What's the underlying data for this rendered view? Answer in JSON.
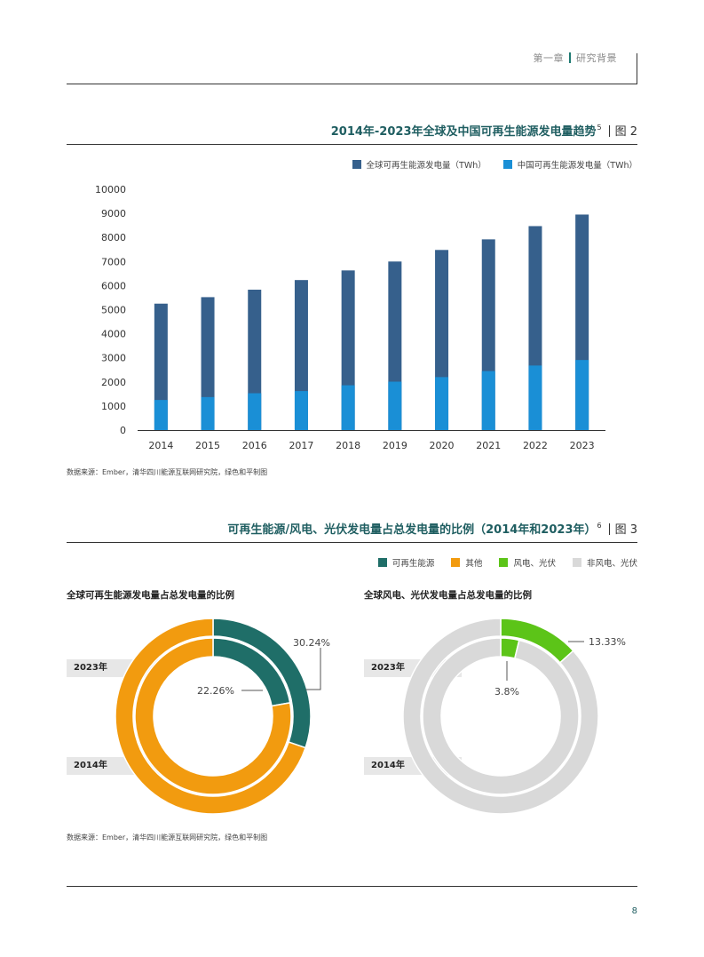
{
  "header": {
    "chapter": "第一章",
    "section": "研究背景"
  },
  "figure2": {
    "title": "2014年-2023年全球及中国可再生能源发电量趋势",
    "ref": "5",
    "fig_label": "图 2",
    "source": "数据来源：Ember，清华四川能源互联网研究院，绿色和平制图"
  },
  "figure3": {
    "title": "可再生能源/风电、光伏发电量占总发电量的比例（2014年和2023年）",
    "ref": "6",
    "fig_label": "图 3",
    "legend": [
      "可再生能源",
      "其他",
      "风电、光伏",
      "非风电、光伏"
    ],
    "left_title": "全球可再生能源发电量占总发电量的比例",
    "right_title": "全球风电、光伏发电量占总发电量的比例",
    "year_outer": "2023年",
    "year_inner": "2014年",
    "source": "数据来源：Ember，清华四川能源互联网研究院，绿色和平制图"
  },
  "colors": {
    "global_bar": "#36608c",
    "china_bar": "#1a8fd6",
    "renewable": "#1f6e68",
    "other": "#f29b0f",
    "wind_solar": "#5cc418",
    "non_wind_solar": "#d9d9d9"
  },
  "page_number": "8",
  "chart_data": [
    {
      "type": "bar",
      "categories": [
        "2014",
        "2015",
        "2016",
        "2017",
        "2018",
        "2019",
        "2020",
        "2021",
        "2022",
        "2023"
      ],
      "series": [
        {
          "name": "全球可再生能源发电量（TWh）",
          "values": [
            5250,
            5520,
            5830,
            6230,
            6630,
            7000,
            7480,
            7920,
            8470,
            8950
          ]
        },
        {
          "name": "中国可再生能源发电量（TWh）",
          "values": [
            1250,
            1370,
            1530,
            1620,
            1860,
            2010,
            2200,
            2450,
            2680,
            2910
          ]
        }
      ],
      "yticks": [
        "0",
        "1000",
        "2000",
        "3000",
        "4000",
        "5000",
        "6000",
        "7000",
        "8000",
        "9000",
        "10000"
      ],
      "ylim": [
        0,
        10000
      ],
      "grid": false,
      "legend_position": "top-right"
    },
    {
      "type": "pie",
      "title": "全球可再生能源发电量占总发电量的比例",
      "rings": [
        {
          "name": "2023年",
          "slices": [
            {
              "name": "可再生能源",
              "value": 30.24
            },
            {
              "name": "其他",
              "value": 69.76
            }
          ],
          "label": "30.24%"
        },
        {
          "name": "2014年",
          "slices": [
            {
              "name": "可再生能源",
              "value": 22.26
            },
            {
              "name": "其他",
              "value": 77.74
            }
          ],
          "label": "22.26%"
        }
      ]
    },
    {
      "type": "pie",
      "title": "全球风电、光伏发电量占总发电量的比例",
      "rings": [
        {
          "name": "2023年",
          "slices": [
            {
              "name": "风电、光伏",
              "value": 13.33
            },
            {
              "name": "非风电、光伏",
              "value": 86.67
            }
          ],
          "label": "13.33%"
        },
        {
          "name": "2014年",
          "slices": [
            {
              "name": "风电、光伏",
              "value": 3.8
            },
            {
              "name": "非风电、光伏",
              "value": 96.2
            }
          ],
          "label": "3.8%"
        }
      ]
    }
  ]
}
